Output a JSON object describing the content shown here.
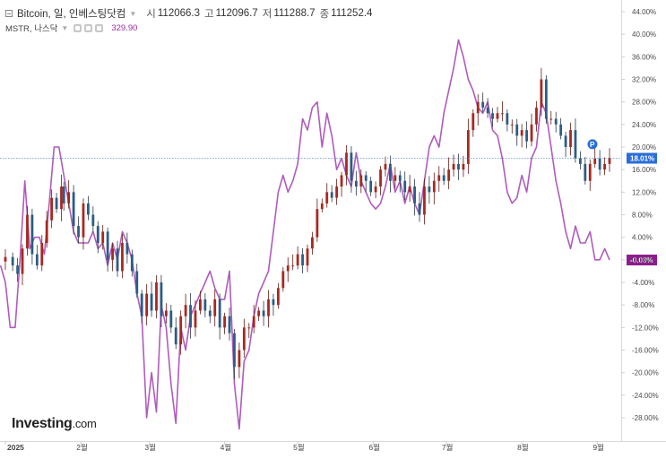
{
  "legend": {
    "symbol": "Bitcoin, 일, 인베스팅닷컴",
    "ohlc": [
      {
        "key": "시",
        "value": "112066.3"
      },
      {
        "key": "고",
        "value": "112096.7"
      },
      {
        "key": "저",
        "value": "111288.7"
      },
      {
        "key": "종",
        "value": "111252.4"
      }
    ],
    "compare_symbol": "MSTR, 나스닥",
    "compare_value": "329.90"
  },
  "logo": {
    "text": "Investing",
    "suffix": ".com"
  },
  "colors": {
    "bull": "#26a69a",
    "bear": "#b0281e",
    "bull_body": "#2b5d86",
    "bear_body": "#a8281f",
    "mstr": "#b05bbd",
    "btc_badge": "#2a6ed8",
    "mstr_badge": "#8e1c90",
    "crosshair": "#5b8ed6"
  },
  "chart_data": {
    "type": "candlestick-with-line",
    "y_axis": {
      "unit": "%",
      "min": -28,
      "max": 44,
      "ticks": [
        "44.00%",
        "40.00%",
        "36.00%",
        "32.00%",
        "28.00%",
        "24.00%",
        "20.00%",
        "16.00%",
        "12.00%",
        "8.00%",
        "4.00%",
        "0.00%",
        "-4.00%",
        "-8.00%",
        "-12.00%",
        "-16.00%",
        "-20.00%",
        "-24.00%",
        "-28.00%"
      ],
      "tick_values": [
        44,
        40,
        36,
        32,
        28,
        24,
        20,
        16,
        12,
        8,
        4,
        0,
        -4,
        -8,
        -12,
        -16,
        -20,
        -24,
        -28
      ]
    },
    "x_axis": {
      "ticks": [
        {
          "label": "2025",
          "day": 0,
          "bold": true
        },
        {
          "label": "2월",
          "day": 31
        },
        {
          "label": "3월",
          "day": 59
        },
        {
          "label": "4월",
          "day": 90
        },
        {
          "label": "5월",
          "day": 120
        },
        {
          "label": "6월",
          "day": 151
        },
        {
          "label": "7월",
          "day": 181
        },
        {
          "label": "8월",
          "day": 212
        },
        {
          "label": "9월",
          "day": 243
        }
      ],
      "day_range": [
        -2,
        253
      ]
    },
    "series": [
      {
        "name": "Bitcoin",
        "kind": "candles",
        "last_label": "18.01%",
        "last_value": 18.01,
        "marker": "P",
        "marker_day": 241,
        "marker_value": 20.5,
        "closes": [
          [
            0,
            0.5
          ],
          [
            3,
            -1
          ],
          [
            5,
            -2.5
          ],
          [
            7,
            2
          ],
          [
            9,
            8
          ],
          [
            11,
            1
          ],
          [
            13,
            -1
          ],
          [
            15,
            3
          ],
          [
            17,
            7
          ],
          [
            19,
            11
          ],
          [
            21,
            9
          ],
          [
            23,
            13
          ],
          [
            24,
            10
          ],
          [
            26,
            12
          ],
          [
            28,
            6
          ],
          [
            30,
            4
          ],
          [
            32,
            10
          ],
          [
            34,
            8
          ],
          [
            36,
            6
          ],
          [
            38,
            3
          ],
          [
            40,
            5
          ],
          [
            42,
            0
          ],
          [
            44,
            2
          ],
          [
            46,
            -2
          ],
          [
            48,
            3
          ],
          [
            50,
            1
          ],
          [
            52,
            -2
          ],
          [
            54,
            -6
          ],
          [
            56,
            -10
          ],
          [
            58,
            -6
          ],
          [
            60,
            -9
          ],
          [
            62,
            -4
          ],
          [
            64,
            -10
          ],
          [
            66,
            -9
          ],
          [
            68,
            -12
          ],
          [
            70,
            -15
          ],
          [
            72,
            -10
          ],
          [
            74,
            -8
          ],
          [
            76,
            -12
          ],
          [
            78,
            -9
          ],
          [
            80,
            -7
          ],
          [
            82,
            -9
          ],
          [
            84,
            -10
          ],
          [
            86,
            -7
          ],
          [
            88,
            -12
          ],
          [
            90,
            -10
          ],
          [
            92,
            -13
          ],
          [
            94,
            -19
          ],
          [
            96,
            -16
          ],
          [
            98,
            -12
          ],
          [
            100,
            -12
          ],
          [
            102,
            -10
          ],
          [
            104,
            -9
          ],
          [
            106,
            -10
          ],
          [
            108,
            -7
          ],
          [
            110,
            -8
          ],
          [
            112,
            -5
          ],
          [
            114,
            -2
          ],
          [
            116,
            -1
          ],
          [
            118,
            -1
          ],
          [
            120,
            1
          ],
          [
            122,
            -1
          ],
          [
            124,
            2
          ],
          [
            126,
            4
          ],
          [
            128,
            9
          ],
          [
            130,
            10
          ],
          [
            132,
            12
          ],
          [
            134,
            11
          ],
          [
            136,
            13
          ],
          [
            138,
            15
          ],
          [
            140,
            19
          ],
          [
            142,
            14
          ],
          [
            144,
            13
          ],
          [
            146,
            15
          ],
          [
            148,
            14
          ],
          [
            150,
            12
          ],
          [
            152,
            13
          ],
          [
            154,
            16
          ],
          [
            156,
            17
          ],
          [
            158,
            14
          ],
          [
            160,
            15
          ],
          [
            162,
            14
          ],
          [
            164,
            12
          ],
          [
            166,
            13
          ],
          [
            168,
            10
          ],
          [
            170,
            8
          ],
          [
            172,
            13
          ],
          [
            174,
            12
          ],
          [
            176,
            14
          ],
          [
            178,
            15
          ],
          [
            180,
            14
          ],
          [
            182,
            16
          ],
          [
            184,
            17
          ],
          [
            186,
            16
          ],
          [
            188,
            17
          ],
          [
            190,
            23
          ],
          [
            192,
            26
          ],
          [
            194,
            28
          ],
          [
            196,
            27
          ],
          [
            198,
            26
          ],
          [
            200,
            25
          ],
          [
            202,
            26
          ],
          [
            204,
            26
          ],
          [
            206,
            24
          ],
          [
            208,
            24
          ],
          [
            210,
            22
          ],
          [
            212,
            23
          ],
          [
            214,
            21
          ],
          [
            216,
            24
          ],
          [
            218,
            27
          ],
          [
            220,
            32
          ],
          [
            222,
            25
          ],
          [
            224,
            25
          ],
          [
            226,
            24
          ],
          [
            228,
            22
          ],
          [
            230,
            20
          ],
          [
            232,
            23
          ],
          [
            234,
            18
          ],
          [
            236,
            17
          ],
          [
            238,
            14
          ],
          [
            240,
            17
          ],
          [
            242,
            18
          ],
          [
            244,
            16
          ],
          [
            246,
            17
          ],
          [
            248,
            18.01
          ]
        ]
      },
      {
        "name": "MSTR",
        "kind": "line",
        "last_label": "-0.03%",
        "last_value": -0.03,
        "points": [
          [
            -2,
            -1
          ],
          [
            0,
            -4
          ],
          [
            2,
            -12
          ],
          [
            4,
            -12
          ],
          [
            6,
            0
          ],
          [
            8,
            14
          ],
          [
            10,
            2
          ],
          [
            12,
            4
          ],
          [
            14,
            4
          ],
          [
            16,
            1
          ],
          [
            18,
            10
          ],
          [
            20,
            20
          ],
          [
            22,
            20
          ],
          [
            24,
            15
          ],
          [
            26,
            10
          ],
          [
            28,
            5
          ],
          [
            30,
            3
          ],
          [
            32,
            3
          ],
          [
            34,
            3
          ],
          [
            36,
            5
          ],
          [
            38,
            2
          ],
          [
            40,
            3
          ],
          [
            42,
            -1
          ],
          [
            44,
            3
          ],
          [
            46,
            0
          ],
          [
            48,
            5
          ],
          [
            50,
            3
          ],
          [
            52,
            0
          ],
          [
            54,
            -6
          ],
          [
            56,
            -10
          ],
          [
            58,
            -28
          ],
          [
            60,
            -20
          ],
          [
            62,
            -27
          ],
          [
            64,
            -8
          ],
          [
            66,
            -12
          ],
          [
            68,
            -22
          ],
          [
            70,
            -29
          ],
          [
            72,
            -12
          ],
          [
            74,
            -16
          ],
          [
            76,
            -10
          ],
          [
            78,
            -8
          ],
          [
            80,
            -6
          ],
          [
            82,
            -4
          ],
          [
            84,
            -2
          ],
          [
            86,
            -5
          ],
          [
            88,
            -7
          ],
          [
            90,
            -7
          ],
          [
            92,
            -2
          ],
          [
            94,
            -22
          ],
          [
            96,
            -30
          ],
          [
            98,
            -18
          ],
          [
            100,
            -16
          ],
          [
            102,
            -10
          ],
          [
            104,
            -6
          ],
          [
            106,
            -4
          ],
          [
            108,
            -2
          ],
          [
            110,
            5
          ],
          [
            112,
            12
          ],
          [
            114,
            15
          ],
          [
            116,
            12
          ],
          [
            118,
            14
          ],
          [
            120,
            17
          ],
          [
            122,
            25
          ],
          [
            124,
            23
          ],
          [
            126,
            27
          ],
          [
            128,
            28
          ],
          [
            130,
            20
          ],
          [
            132,
            26
          ],
          [
            134,
            22
          ],
          [
            136,
            16
          ],
          [
            138,
            18
          ],
          [
            140,
            15
          ],
          [
            142,
            13
          ],
          [
            144,
            19
          ],
          [
            146,
            14
          ],
          [
            148,
            12
          ],
          [
            150,
            10
          ],
          [
            152,
            9
          ],
          [
            154,
            10
          ],
          [
            156,
            13
          ],
          [
            158,
            17
          ],
          [
            160,
            12
          ],
          [
            162,
            14
          ],
          [
            164,
            10
          ],
          [
            166,
            13
          ],
          [
            168,
            10
          ],
          [
            170,
            8
          ],
          [
            172,
            14
          ],
          [
            174,
            20
          ],
          [
            176,
            22
          ],
          [
            178,
            20
          ],
          [
            180,
            26
          ],
          [
            182,
            30
          ],
          [
            184,
            34
          ],
          [
            186,
            39
          ],
          [
            188,
            36
          ],
          [
            190,
            32
          ],
          [
            192,
            30
          ],
          [
            194,
            27
          ],
          [
            196,
            26
          ],
          [
            198,
            28
          ],
          [
            200,
            23
          ],
          [
            202,
            22
          ],
          [
            204,
            18
          ],
          [
            206,
            12
          ],
          [
            208,
            10
          ],
          [
            210,
            11
          ],
          [
            212,
            15
          ],
          [
            214,
            12
          ],
          [
            216,
            18
          ],
          [
            218,
            20
          ],
          [
            220,
            28
          ],
          [
            222,
            26
          ],
          [
            224,
            20
          ],
          [
            226,
            14
          ],
          [
            228,
            10
          ],
          [
            230,
            5
          ],
          [
            232,
            2
          ],
          [
            234,
            6
          ],
          [
            236,
            3
          ],
          [
            238,
            3
          ],
          [
            240,
            5
          ],
          [
            242,
            0
          ],
          [
            244,
            0
          ],
          [
            246,
            2
          ],
          [
            248,
            -0.03
          ]
        ]
      }
    ]
  }
}
